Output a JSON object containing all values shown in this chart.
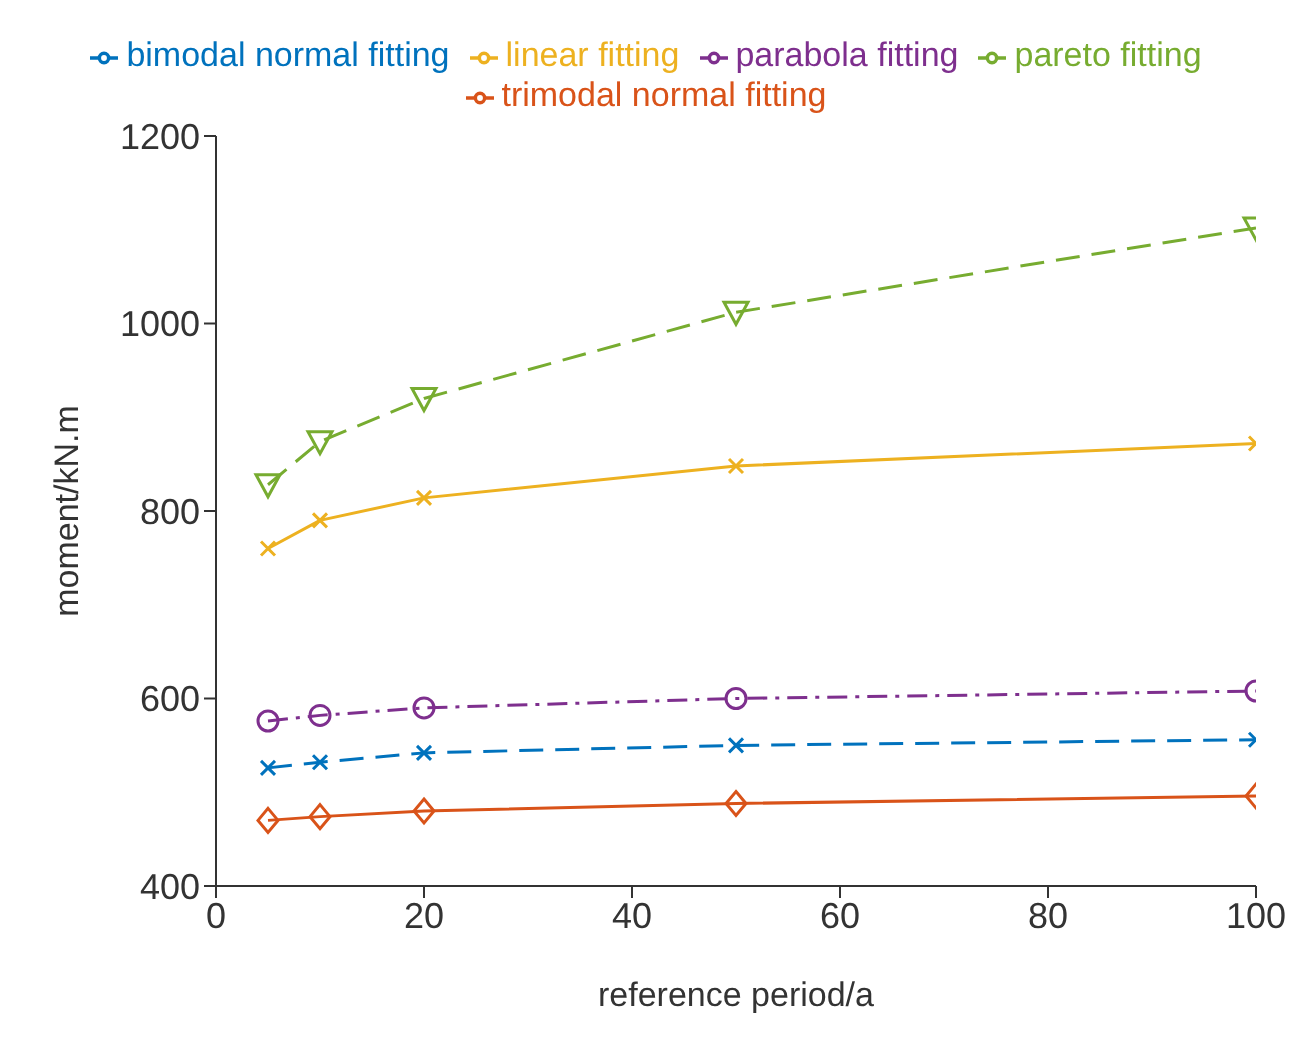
{
  "chart_data": {
    "type": "line",
    "xlabel": "reference period/a",
    "ylabel": "moment/kN.m",
    "x": [
      5,
      10,
      20,
      50,
      100
    ],
    "xlim": [
      0,
      100
    ],
    "xticks": [
      0,
      20,
      40,
      60,
      80,
      100
    ],
    "ylim": [
      400,
      1200
    ],
    "yticks": [
      400,
      600,
      800,
      1000,
      1200
    ],
    "grid": false,
    "legend": "top",
    "series": [
      {
        "name": "bimodal normal fitting",
        "color": "#0072bd",
        "marker": "cross",
        "line_style": "dashed",
        "values": [
          526,
          532,
          542,
          550,
          556
        ]
      },
      {
        "name": "trimodal normal fitting",
        "color": "#d95319",
        "marker": "diamond",
        "line_style": "solid",
        "values": [
          470,
          474,
          480,
          488,
          496
        ]
      },
      {
        "name": "linear fitting",
        "color": "#edb120",
        "marker": "cross",
        "line_style": "solid",
        "values": [
          760,
          790,
          814,
          848,
          872
        ]
      },
      {
        "name": "parabola fitting",
        "color": "#7e2f8e",
        "marker": "circle",
        "line_style": "dashdot",
        "values": [
          576,
          582,
          590,
          600,
          608
        ]
      },
      {
        "name": "pareto fitting",
        "color": "#77ac30",
        "marker": "triangle",
        "line_style": "dashed",
        "values": [
          828,
          874,
          920,
          1012,
          1102
        ]
      }
    ]
  }
}
